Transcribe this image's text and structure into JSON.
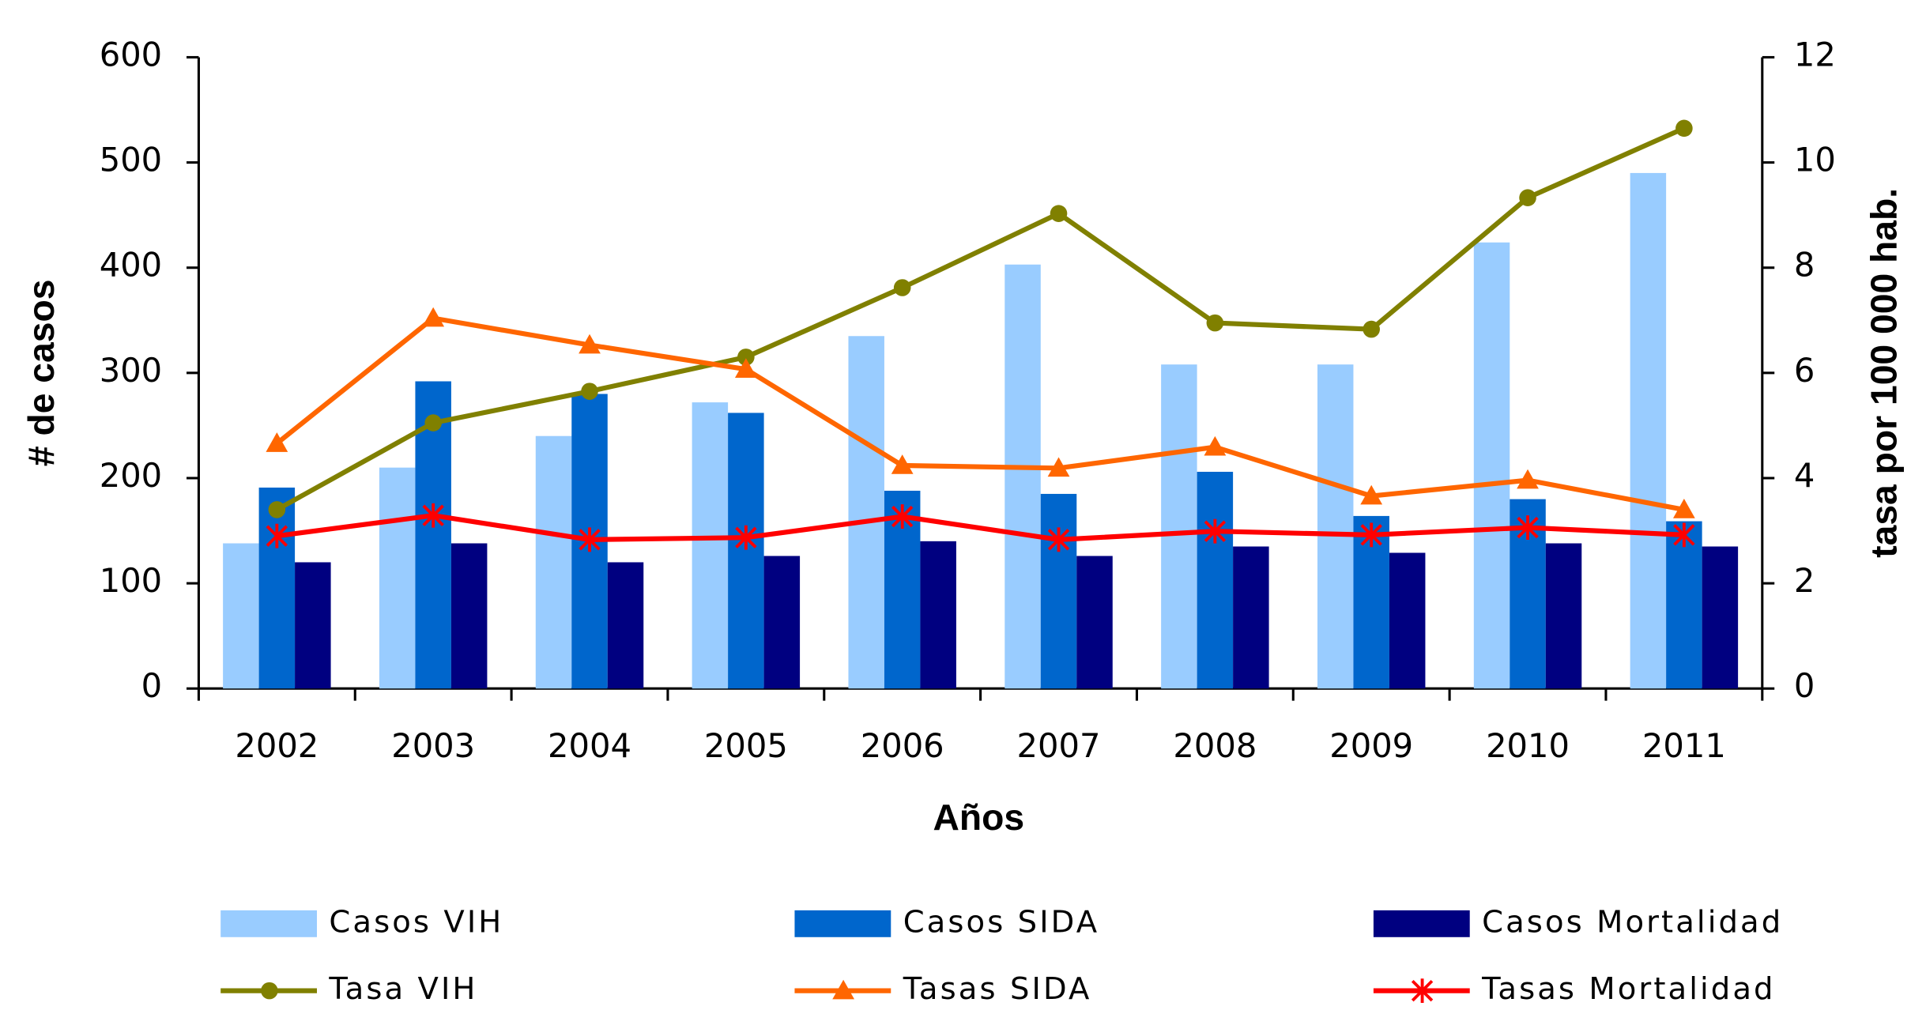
{
  "chart_data": {
    "type": "bar",
    "x_label": "Años",
    "y_label": "# de casos",
    "y2_label": "tasa por 100 000 hab.",
    "categories": [
      "2002",
      "2003",
      "2004",
      "2005",
      "2006",
      "2007",
      "2008",
      "2009",
      "2010",
      "2011"
    ],
    "ylim": [
      0,
      600
    ],
    "yticks": [
      0,
      100,
      200,
      300,
      400,
      500,
      600
    ],
    "y2lim": [
      0,
      12
    ],
    "y2ticks": [
      0,
      2,
      4,
      6,
      8,
      10,
      12
    ],
    "series": [
      {
        "name": "Casos VIH",
        "type": "bar",
        "color": "#99ccff",
        "values": [
          138,
          210,
          240,
          272,
          335,
          403,
          308,
          308,
          424,
          490
        ]
      },
      {
        "name": "Casos SIDA",
        "type": "bar",
        "color": "#0066cc",
        "values": [
          191,
          292,
          280,
          262,
          188,
          185,
          206,
          164,
          180,
          159
        ]
      },
      {
        "name": "Casos Mortalidad",
        "type": "bar",
        "color": "#000080",
        "values": [
          120,
          138,
          120,
          126,
          140,
          126,
          135,
          129,
          138,
          135
        ]
      },
      {
        "name": "Tasa VIH",
        "type": "line",
        "axis": "y2",
        "marker": "circle",
        "color": "#808000",
        "values": [
          3.4,
          5.05,
          5.65,
          6.3,
          7.62,
          9.03,
          6.95,
          6.83,
          9.33,
          10.65
        ]
      },
      {
        "name": "Tasas SIDA",
        "type": "line",
        "axis": "y2",
        "marker": "triangle",
        "color": "#ff6600",
        "values": [
          4.66,
          7.04,
          6.53,
          6.07,
          4.24,
          4.19,
          4.59,
          3.66,
          3.96,
          3.4
        ]
      },
      {
        "name": "Tasas Mortalidad",
        "type": "line",
        "axis": "y2",
        "marker": "asterisk",
        "color": "#ff0000",
        "values": [
          2.9,
          3.29,
          2.83,
          2.87,
          3.27,
          2.83,
          2.99,
          2.92,
          3.06,
          2.92
        ]
      }
    ]
  }
}
